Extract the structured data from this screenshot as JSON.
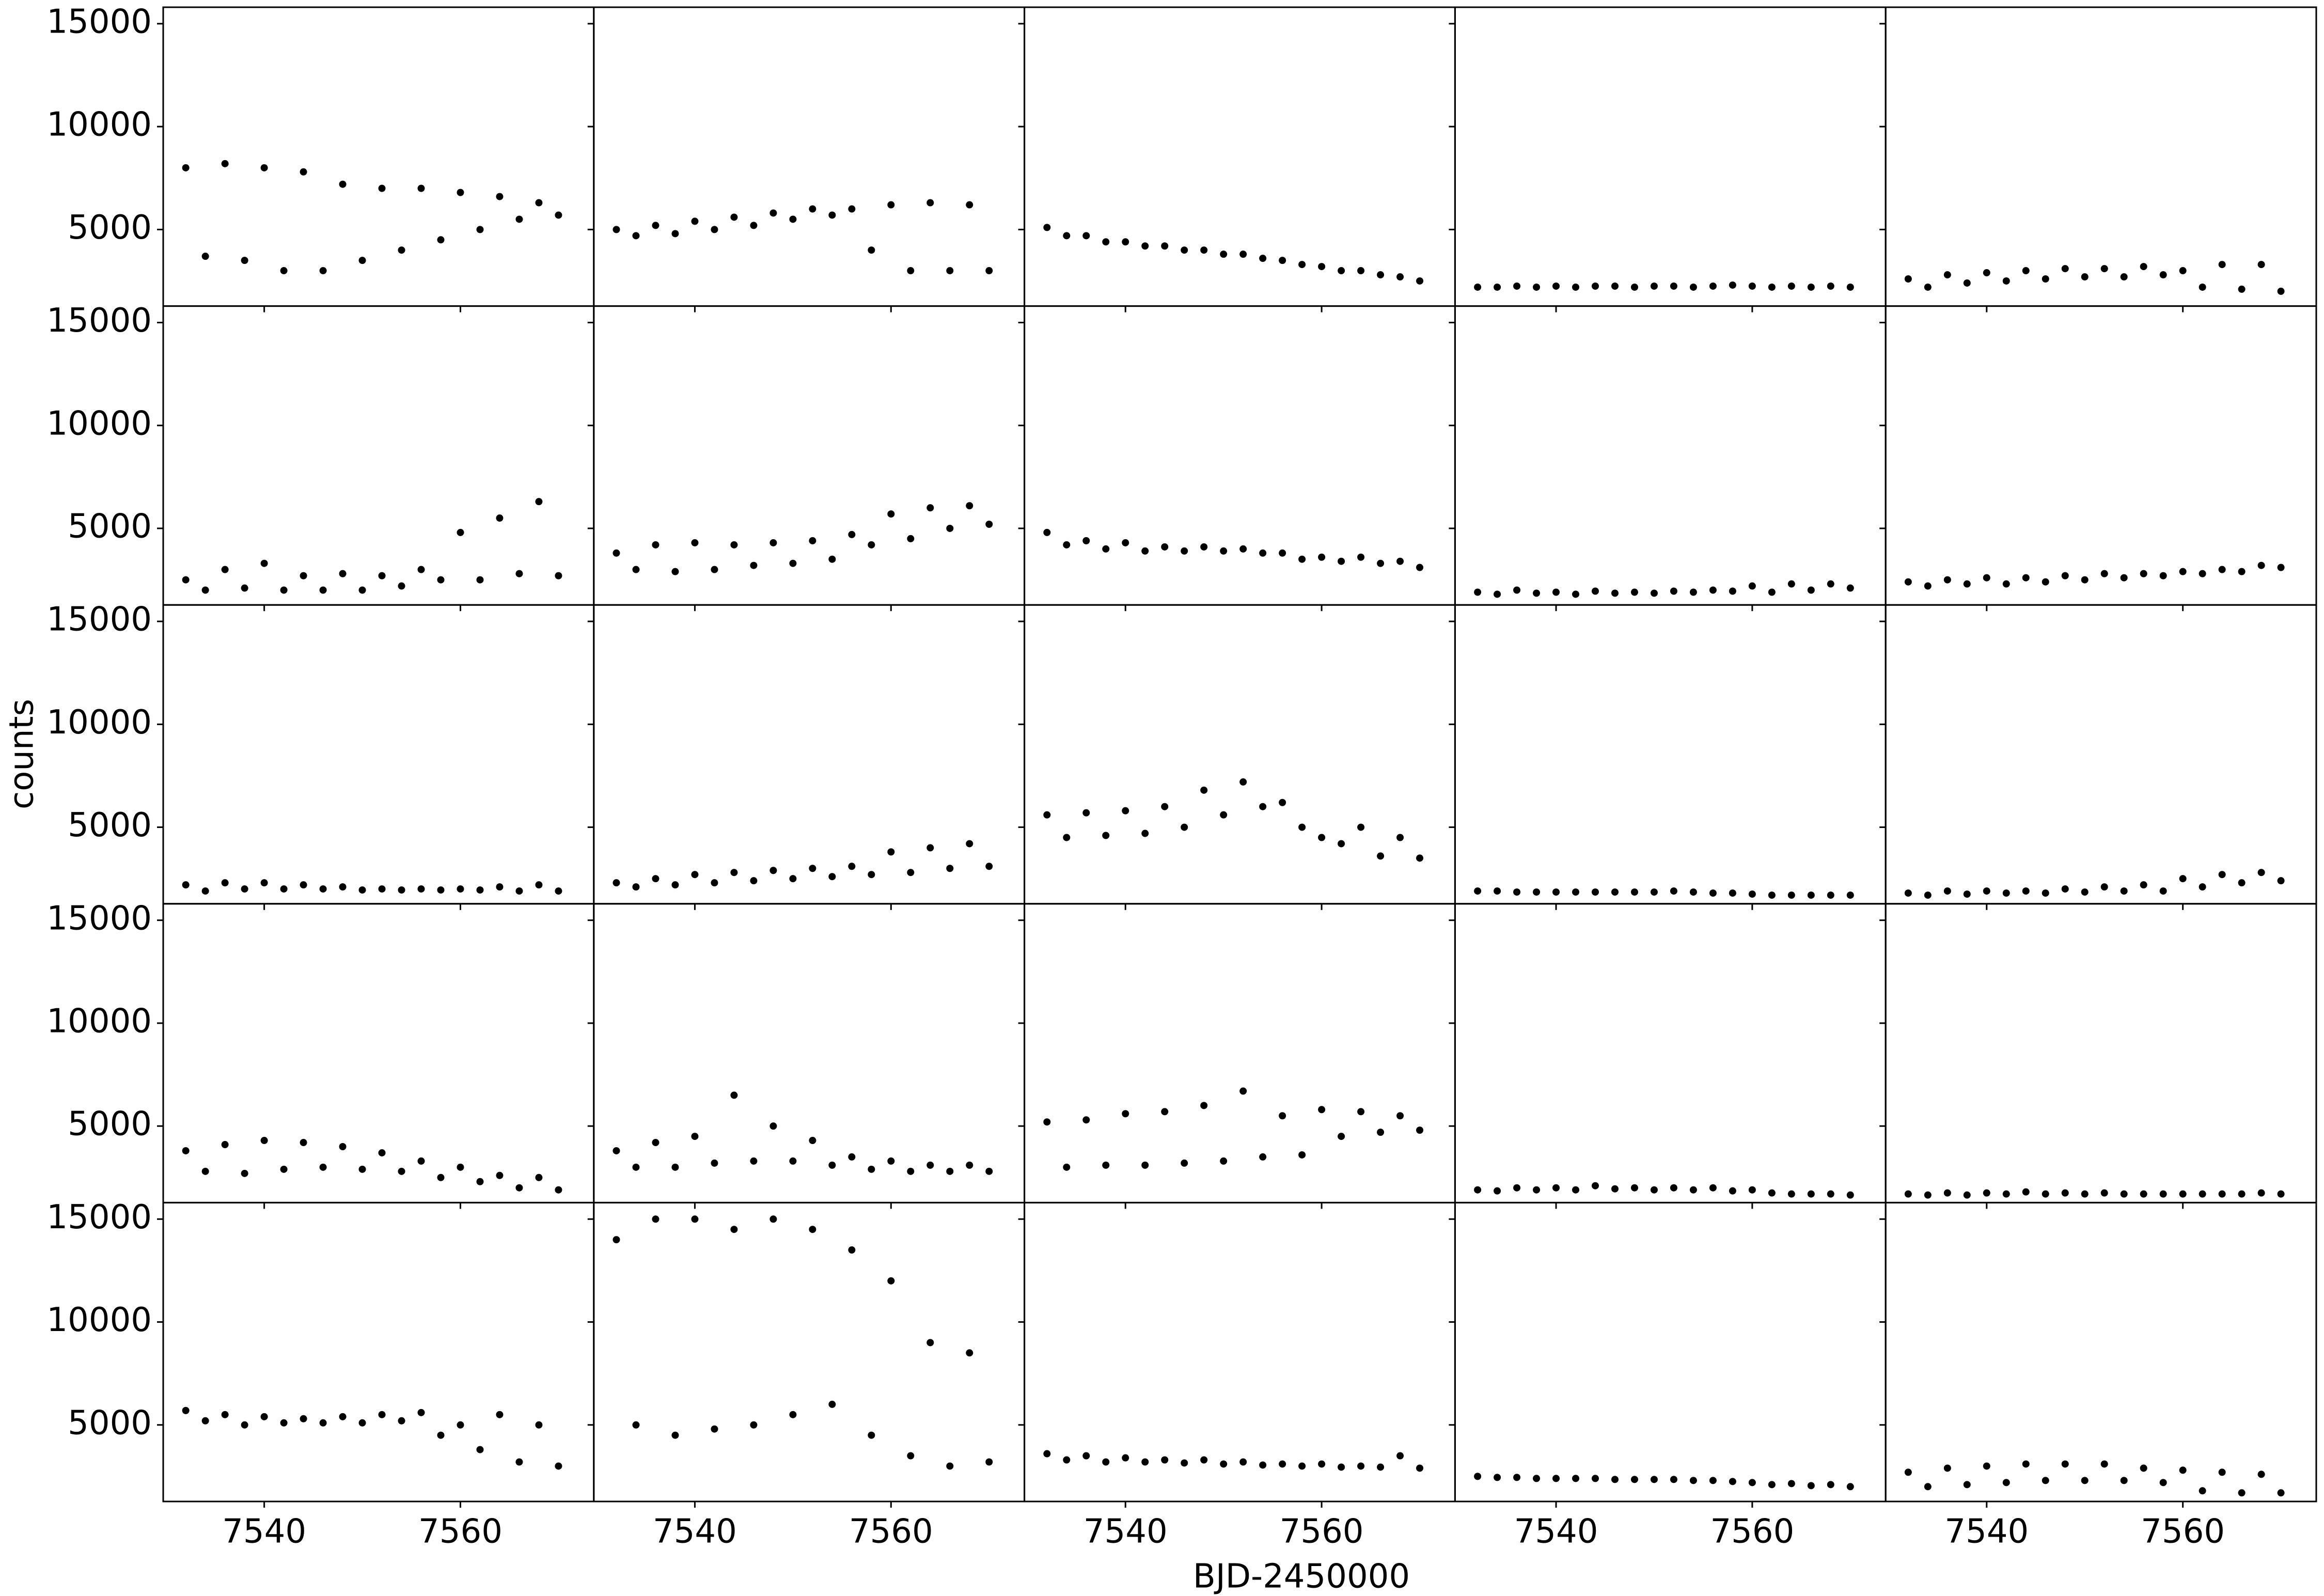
{
  "chart_data": {
    "type": "scatter",
    "x_label": "BJD-2450000",
    "y_label": "counts",
    "color": "#000000",
    "rows": 5,
    "cols": 5,
    "xlim": [
      7529.7,
      7573.6
    ],
    "ylim": [
      1280,
      15800
    ],
    "xticks": [
      7540,
      7560
    ],
    "yticks": [
      5000,
      10000,
      15000
    ],
    "x": [
      7532,
      7534,
      7536,
      7538,
      7540,
      7542,
      7544,
      7546,
      7548,
      7550,
      7552,
      7554,
      7556,
      7558,
      7560,
      7562,
      7564,
      7566,
      7568,
      7570
    ],
    "panels": [
      {
        "values": [
          8000,
          3700,
          8200,
          3500,
          8000,
          3000,
          7800,
          3000,
          7200,
          3500,
          7000,
          4000,
          7000,
          4500,
          6800,
          5000,
          6600,
          5500,
          6300,
          5700
        ]
      },
      {
        "values": [
          5000,
          4700,
          5200,
          4800,
          5400,
          5000,
          5600,
          5200,
          5800,
          5500,
          6000,
          5700,
          6000,
          4000,
          6200,
          3000,
          6300,
          3000,
          6200,
          3000
        ]
      },
      {
        "values": [
          5100,
          4700,
          4700,
          4400,
          4400,
          4200,
          4200,
          4000,
          4000,
          3800,
          3800,
          3600,
          3500,
          3300,
          3200,
          3000,
          3000,
          2800,
          2700,
          2500
        ]
      },
      {
        "values": [
          2200,
          2200,
          2250,
          2200,
          2250,
          2200,
          2250,
          2250,
          2200,
          2250,
          2250,
          2200,
          2250,
          2300,
          2250,
          2200,
          2250,
          2200,
          2250,
          2200
        ]
      },
      {
        "values": [
          2600,
          2200,
          2800,
          2400,
          2900,
          2500,
          3000,
          2600,
          3100,
          2700,
          3100,
          2700,
          3200,
          2800,
          3000,
          2200,
          3300,
          2100,
          3300,
          2000
        ]
      },
      {
        "values": [
          2500,
          2000,
          3000,
          2100,
          3300,
          2000,
          2700,
          2000,
          2800,
          2000,
          2700,
          2200,
          3000,
          2500,
          4800,
          2500,
          5500,
          2800,
          6300,
          2700
        ]
      },
      {
        "values": [
          3800,
          3000,
          4200,
          2900,
          4300,
          3000,
          4200,
          3200,
          4300,
          3300,
          4400,
          3500,
          4700,
          4200,
          5700,
          4500,
          6000,
          5000,
          6100,
          5200
        ]
      },
      {
        "values": [
          4800,
          4200,
          4400,
          4000,
          4300,
          3900,
          4100,
          3900,
          4100,
          3900,
          4000,
          3800,
          3800,
          3500,
          3600,
          3400,
          3600,
          3300,
          3400,
          3100
        ]
      },
      {
        "values": [
          1900,
          1800,
          2000,
          1850,
          1900,
          1800,
          1950,
          1850,
          1900,
          1850,
          1950,
          1900,
          2000,
          1950,
          2200,
          1900,
          2300,
          2000,
          2300,
          2100
        ]
      },
      {
        "values": [
          2400,
          2200,
          2500,
          2300,
          2600,
          2300,
          2600,
          2400,
          2700,
          2500,
          2800,
          2600,
          2800,
          2700,
          2900,
          2800,
          3000,
          2900,
          3200,
          3100
        ]
      },
      {
        "values": [
          2200,
          1900,
          2300,
          2000,
          2300,
          2000,
          2200,
          2000,
          2100,
          1950,
          2000,
          1950,
          2000,
          1950,
          2000,
          1950,
          2100,
          1900,
          2200,
          1900
        ]
      },
      {
        "values": [
          2300,
          2100,
          2500,
          2200,
          2700,
          2300,
          2800,
          2400,
          2900,
          2500,
          3000,
          2600,
          3100,
          2700,
          3800,
          2800,
          4000,
          3000,
          4200,
          3100
        ]
      },
      {
        "values": [
          5600,
          4500,
          5700,
          4600,
          5800,
          4700,
          6000,
          5000,
          6800,
          5600,
          7200,
          6000,
          6200,
          5000,
          4500,
          4200,
          5000,
          3600,
          4500,
          3500
        ]
      },
      {
        "values": [
          1900,
          1900,
          1850,
          1850,
          1850,
          1850,
          1850,
          1850,
          1850,
          1850,
          1900,
          1850,
          1800,
          1800,
          1750,
          1700,
          1700,
          1700,
          1700,
          1700
        ]
      },
      {
        "values": [
          1800,
          1700,
          1900,
          1750,
          1900,
          1800,
          1900,
          1800,
          2000,
          1850,
          2100,
          1900,
          2200,
          1900,
          2500,
          2100,
          2700,
          2300,
          2800,
          2400
        ]
      },
      {
        "values": [
          3800,
          2800,
          4100,
          2700,
          4300,
          2900,
          4200,
          3000,
          4000,
          2900,
          3700,
          2800,
          3300,
          2500,
          3000,
          2300,
          2600,
          2000,
          2500,
          1900
        ]
      },
      {
        "values": [
          3800,
          3000,
          4200,
          3000,
          4500,
          3200,
          6500,
          3300,
          5000,
          3300,
          4300,
          3100,
          3500,
          2900,
          3300,
          2800,
          3100,
          2800,
          3100,
          2800
        ]
      },
      {
        "values": [
          5200,
          3000,
          5300,
          3100,
          5600,
          3100,
          5700,
          3200,
          6000,
          3300,
          6700,
          3500,
          5500,
          3600,
          5800,
          4500,
          5700,
          4700,
          5500,
          4800
        ]
      },
      {
        "values": [
          1900,
          1850,
          2000,
          1900,
          2000,
          1900,
          2100,
          1950,
          2000,
          1900,
          2000,
          1900,
          2000,
          1850,
          1900,
          1750,
          1700,
          1700,
          1700,
          1650
        ]
      },
      {
        "values": [
          1700,
          1650,
          1750,
          1650,
          1750,
          1700,
          1800,
          1700,
          1750,
          1700,
          1750,
          1700,
          1700,
          1700,
          1700,
          1700,
          1700,
          1700,
          1750,
          1700
        ]
      },
      {
        "values": [
          5700,
          5200,
          5500,
          5000,
          5400,
          5100,
          5300,
          5100,
          5400,
          5100,
          5500,
          5200,
          5600,
          4500,
          5000,
          3800,
          5500,
          3200,
          5000,
          3000
        ]
      },
      {
        "values": [
          14000,
          5000,
          15000,
          4500,
          15000,
          4800,
          14500,
          5000,
          15000,
          5500,
          14500,
          6000,
          13500,
          4500,
          12000,
          3500,
          9000,
          3000,
          8500,
          3200
        ]
      },
      {
        "values": [
          3600,
          3300,
          3500,
          3200,
          3400,
          3200,
          3300,
          3150,
          3300,
          3100,
          3200,
          3050,
          3100,
          3000,
          3100,
          2950,
          3000,
          2950,
          3500,
          2900
        ]
      },
      {
        "values": [
          2500,
          2450,
          2450,
          2400,
          2400,
          2400,
          2400,
          2350,
          2350,
          2350,
          2350,
          2300,
          2300,
          2250,
          2200,
          2100,
          2150,
          2050,
          2100,
          2000
        ]
      },
      {
        "values": [
          2700,
          2000,
          2900,
          2100,
          3000,
          2200,
          3100,
          2300,
          3100,
          2300,
          3100,
          2300,
          2900,
          2200,
          2800,
          1800,
          2700,
          1700,
          2600,
          1700
        ]
      }
    ]
  }
}
